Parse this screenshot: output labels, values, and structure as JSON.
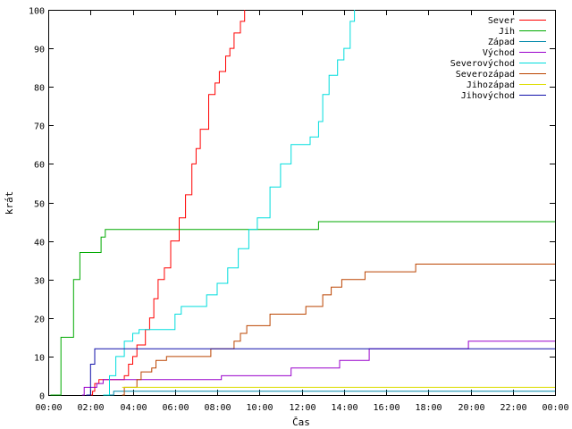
{
  "chart_data": {
    "type": "line",
    "title": "",
    "xlabel": "Čas",
    "ylabel": "krát",
    "xlim": [
      0,
      24
    ],
    "ylim": [
      0,
      100
    ],
    "x_ticks": [
      "00:00",
      "02:00",
      "04:00",
      "06:00",
      "08:00",
      "10:00",
      "12:00",
      "14:00",
      "16:00",
      "18:00",
      "20:00",
      "22:00",
      "00:00"
    ],
    "y_ticks": [
      0,
      10,
      20,
      30,
      40,
      50,
      60,
      70,
      80,
      90,
      100
    ],
    "grid": false,
    "legend_position": "top-right",
    "series": [
      {
        "name": "Sever",
        "color": "#ff0000",
        "points": [
          [
            1.9,
            0
          ],
          [
            2.1,
            1
          ],
          [
            2.2,
            3
          ],
          [
            2.4,
            4
          ],
          [
            3.6,
            5
          ],
          [
            3.8,
            8
          ],
          [
            4.0,
            10
          ],
          [
            4.2,
            13
          ],
          [
            4.6,
            17
          ],
          [
            4.8,
            20
          ],
          [
            5.0,
            25
          ],
          [
            5.2,
            30
          ],
          [
            5.5,
            33
          ],
          [
            5.8,
            40
          ],
          [
            6.2,
            46
          ],
          [
            6.5,
            52
          ],
          [
            6.8,
            60
          ],
          [
            7.0,
            64
          ],
          [
            7.2,
            69
          ],
          [
            7.6,
            78
          ],
          [
            7.9,
            81
          ],
          [
            8.1,
            84
          ],
          [
            8.4,
            88
          ],
          [
            8.6,
            90
          ],
          [
            8.8,
            94
          ],
          [
            9.1,
            97
          ],
          [
            9.3,
            100
          ]
        ]
      },
      {
        "name": "Jih",
        "color": "#00aa00",
        "points": [
          [
            0.1,
            0
          ],
          [
            0.6,
            15
          ],
          [
            1.2,
            30
          ],
          [
            1.5,
            37
          ],
          [
            2.3,
            37
          ],
          [
            2.5,
            41
          ],
          [
            2.7,
            43
          ],
          [
            12.7,
            43
          ],
          [
            12.8,
            45
          ],
          [
            24,
            45
          ]
        ]
      },
      {
        "name": "Západ",
        "color": "#0088aa",
        "points": [
          [
            2.9,
            0
          ],
          [
            3.1,
            1
          ],
          [
            24,
            1
          ]
        ]
      },
      {
        "name": "Východ",
        "color": "#9900cc",
        "points": [
          [
            1.6,
            0
          ],
          [
            1.7,
            2
          ],
          [
            2.3,
            3
          ],
          [
            2.6,
            4
          ],
          [
            8.1,
            4
          ],
          [
            8.2,
            5
          ],
          [
            11.4,
            5
          ],
          [
            11.5,
            7
          ],
          [
            13.7,
            7
          ],
          [
            13.8,
            9
          ],
          [
            15.1,
            9
          ],
          [
            15.2,
            12
          ],
          [
            19.8,
            12
          ],
          [
            19.9,
            14
          ],
          [
            24,
            14
          ]
        ]
      },
      {
        "name": "Severovýchod",
        "color": "#00dddd",
        "points": [
          [
            2.6,
            0
          ],
          [
            2.9,
            5
          ],
          [
            3.2,
            10
          ],
          [
            3.6,
            14
          ],
          [
            4.0,
            16
          ],
          [
            4.3,
            17
          ],
          [
            5.6,
            17
          ],
          [
            6.0,
            21
          ],
          [
            6.3,
            23
          ],
          [
            7.1,
            23
          ],
          [
            7.5,
            26
          ],
          [
            8.0,
            29
          ],
          [
            8.5,
            33
          ],
          [
            9.0,
            38
          ],
          [
            9.5,
            43
          ],
          [
            9.9,
            46
          ],
          [
            10.5,
            54
          ],
          [
            11.0,
            60
          ],
          [
            11.5,
            65
          ],
          [
            12.4,
            67
          ],
          [
            12.8,
            71
          ],
          [
            13.0,
            78
          ],
          [
            13.3,
            83
          ],
          [
            13.7,
            87
          ],
          [
            14.0,
            90
          ],
          [
            14.3,
            97
          ],
          [
            14.5,
            100
          ]
        ]
      },
      {
        "name": "Severozápad",
        "color": "#bb4400",
        "points": [
          [
            3.5,
            0
          ],
          [
            3.6,
            2
          ],
          [
            4.2,
            4
          ],
          [
            4.4,
            6
          ],
          [
            4.9,
            7
          ],
          [
            5.1,
            9
          ],
          [
            5.6,
            10
          ],
          [
            7.6,
            10
          ],
          [
            7.7,
            12
          ],
          [
            8.6,
            12
          ],
          [
            8.8,
            14
          ],
          [
            9.1,
            16
          ],
          [
            9.4,
            18
          ],
          [
            10.4,
            18
          ],
          [
            10.5,
            21
          ],
          [
            12.0,
            21
          ],
          [
            12.2,
            23
          ],
          [
            12.8,
            23
          ],
          [
            13.0,
            26
          ],
          [
            13.4,
            28
          ],
          [
            13.9,
            30
          ],
          [
            14.8,
            30
          ],
          [
            15.0,
            32
          ],
          [
            17.3,
            32
          ],
          [
            17.4,
            34
          ],
          [
            24,
            34
          ]
        ]
      },
      {
        "name": "Jihozápad",
        "color": "#dddd00",
        "points": [
          [
            3.5,
            2
          ],
          [
            24,
            2
          ]
        ]
      },
      {
        "name": "Jihovýchod",
        "color": "#1111aa",
        "points": [
          [
            1.8,
            0
          ],
          [
            2.0,
            8
          ],
          [
            2.2,
            12
          ],
          [
            24,
            12
          ]
        ]
      }
    ]
  }
}
